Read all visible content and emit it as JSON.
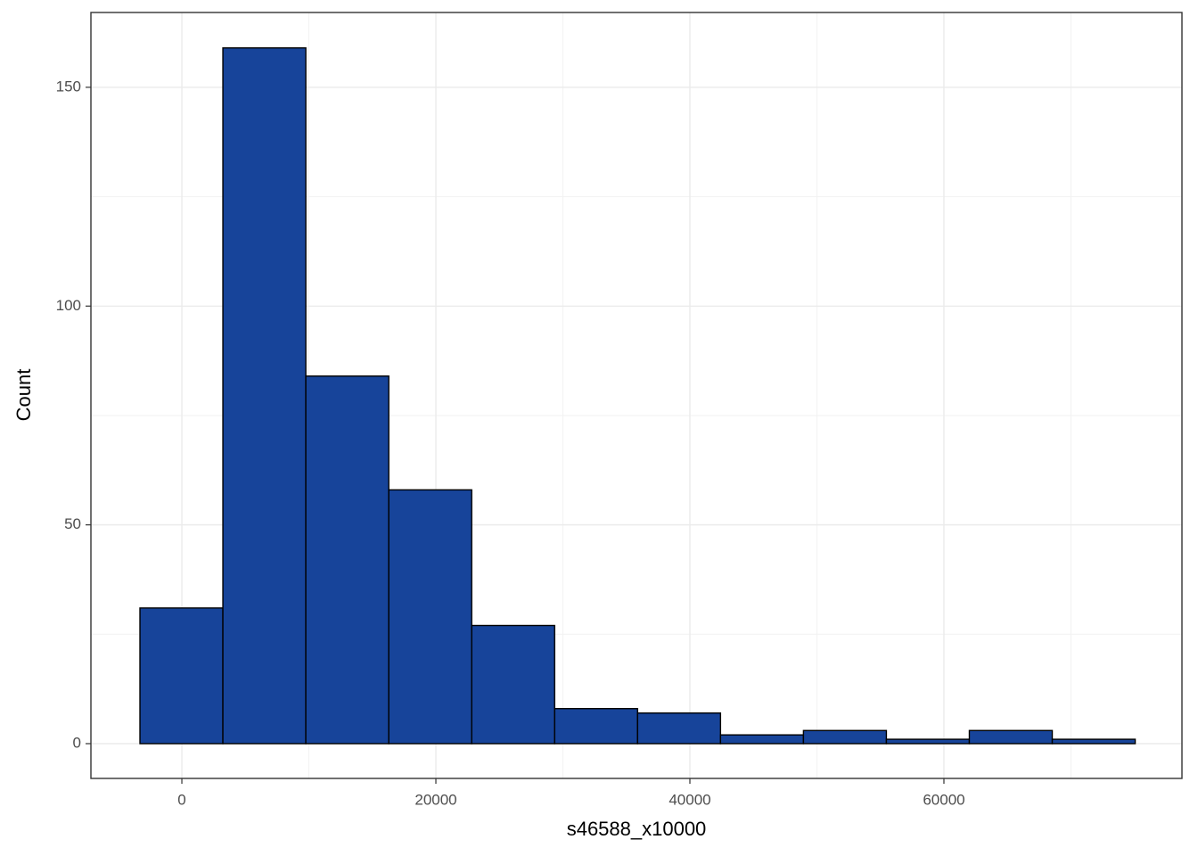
{
  "chart_data": {
    "type": "histogram",
    "x_label": "s46588_x10000",
    "y_label": "Count",
    "bins": [
      -3300,
      3230,
      9760,
      16290,
      22820,
      29350,
      35880,
      42410,
      48940,
      55470,
      62000,
      68530,
      75060
    ],
    "values": [
      31,
      159,
      84,
      58,
      27,
      8,
      7,
      2,
      3,
      1,
      3,
      1
    ],
    "color": "#17449a",
    "edge_color": "#000000",
    "xlim": [
      -7160,
      78740
    ],
    "ylim": [
      -7.95,
      167.1
    ],
    "xticks": [
      0,
      20000,
      40000,
      60000
    ],
    "yticks": [
      0,
      50,
      100,
      150
    ],
    "grid": true
  }
}
